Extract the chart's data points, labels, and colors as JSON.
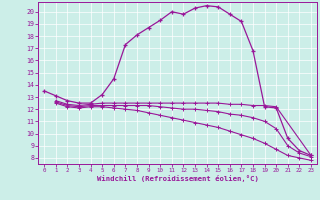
{
  "xlabel": "Windchill (Refroidissement éolien,°C)",
  "bg_color": "#cceee8",
  "line_color": "#991899",
  "xlim": [
    -0.5,
    23.5
  ],
  "ylim": [
    7.5,
    20.8
  ],
  "x_ticks": [
    0,
    1,
    2,
    3,
    4,
    5,
    6,
    7,
    8,
    9,
    10,
    11,
    12,
    13,
    14,
    15,
    16,
    17,
    18,
    19,
    20,
    21,
    22,
    23
  ],
  "y_ticks": [
    8,
    9,
    10,
    11,
    12,
    13,
    14,
    15,
    16,
    17,
    18,
    19,
    20
  ],
  "curve1_x": [
    0,
    1,
    2,
    3,
    4,
    5,
    6,
    7,
    8,
    9,
    10,
    11,
    12,
    13,
    14,
    15,
    16,
    17,
    18,
    19,
    20,
    21,
    22,
    23
  ],
  "curve1_y": [
    13.5,
    13.1,
    12.7,
    12.5,
    12.5,
    13.2,
    14.5,
    17.3,
    18.1,
    18.7,
    19.3,
    20.0,
    19.8,
    20.3,
    20.5,
    20.4,
    19.8,
    19.2,
    16.8,
    12.2,
    12.1,
    9.6,
    8.6,
    8.2
  ],
  "curve2_x": [
    1,
    2,
    3,
    4,
    5,
    6,
    7,
    8,
    9,
    10,
    11,
    12,
    13,
    14,
    15,
    16,
    17,
    18,
    19,
    20,
    23
  ],
  "curve2_y": [
    12.7,
    12.4,
    12.3,
    12.4,
    12.5,
    12.5,
    12.5,
    12.5,
    12.5,
    12.5,
    12.5,
    12.5,
    12.5,
    12.5,
    12.5,
    12.4,
    12.4,
    12.3,
    12.3,
    12.2,
    8.2
  ],
  "curve3_x": [
    1,
    2,
    3,
    4,
    5,
    6,
    7,
    8,
    9,
    10,
    11,
    12,
    13,
    14,
    15,
    16,
    17,
    18,
    19,
    20,
    21,
    22,
    23
  ],
  "curve3_y": [
    12.6,
    12.3,
    12.2,
    12.3,
    12.3,
    12.3,
    12.3,
    12.3,
    12.3,
    12.2,
    12.1,
    12.0,
    12.0,
    11.9,
    11.8,
    11.6,
    11.5,
    11.3,
    11.0,
    10.4,
    9.0,
    8.4,
    8.1
  ],
  "curve4_x": [
    1,
    2,
    3,
    4,
    5,
    6,
    7,
    8,
    9,
    10,
    11,
    12,
    13,
    14,
    15,
    16,
    17,
    18,
    19,
    20,
    21,
    22,
    23
  ],
  "curve4_y": [
    12.5,
    12.2,
    12.1,
    12.2,
    12.2,
    12.1,
    12.0,
    11.9,
    11.7,
    11.5,
    11.3,
    11.1,
    10.9,
    10.7,
    10.5,
    10.2,
    9.9,
    9.6,
    9.2,
    8.7,
    8.2,
    8.0,
    7.8
  ]
}
